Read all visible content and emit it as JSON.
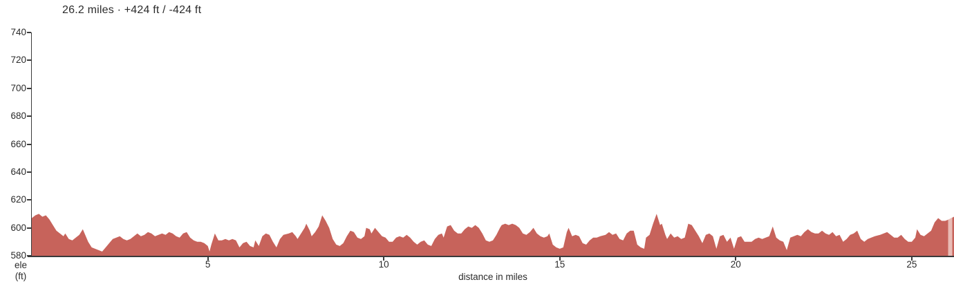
{
  "header": {
    "title": "26.2 miles · +424 ft / -424 ft"
  },
  "chart_data": {
    "type": "area",
    "title": "26.2 miles · +424 ft / -424 ft",
    "xlabel": "distance in miles",
    "ylabel": "ele (ft)",
    "ylabel_lines": [
      "ele",
      "(ft)"
    ],
    "xlim": [
      0,
      26.2
    ],
    "ylim": [
      580,
      740
    ],
    "x_ticks": [
      5,
      10,
      15,
      20,
      25
    ],
    "y_ticks": [
      580,
      600,
      620,
      640,
      660,
      680,
      700,
      720,
      740
    ],
    "grid": false,
    "legend": "none",
    "stats": {
      "distance_miles": 26.2,
      "ascent_ft": 424,
      "descent_ft": 424
    },
    "colors": {
      "area_fill": "#c7635b",
      "end_marker": "#e9bcb6",
      "axis": "#3a3a3a",
      "text": "#2b2b2b"
    },
    "series": [
      {
        "name": "elevation",
        "points": [
          [
            0,
            607
          ],
          [
            0.1,
            609
          ],
          [
            0.2,
            610
          ],
          [
            0.3,
            608
          ],
          [
            0.4,
            609
          ],
          [
            0.5,
            606
          ],
          [
            0.6,
            602
          ],
          [
            0.7,
            598
          ],
          [
            0.75,
            597
          ],
          [
            0.85,
            595
          ],
          [
            0.9,
            594
          ],
          [
            0.95,
            596
          ],
          [
            1.05,
            592
          ],
          [
            1.15,
            591
          ],
          [
            1.25,
            593
          ],
          [
            1.35,
            595
          ],
          [
            1.45,
            599
          ],
          [
            1.5,
            596
          ],
          [
            1.6,
            590
          ],
          [
            1.7,
            586
          ],
          [
            1.8,
            585
          ],
          [
            1.9,
            584
          ],
          [
            2.0,
            583
          ],
          [
            2.1,
            586
          ],
          [
            2.2,
            589
          ],
          [
            2.3,
            592
          ],
          [
            2.4,
            593
          ],
          [
            2.5,
            594
          ],
          [
            2.6,
            592
          ],
          [
            2.7,
            591
          ],
          [
            2.8,
            592
          ],
          [
            2.9,
            594
          ],
          [
            3.0,
            596
          ],
          [
            3.1,
            594
          ],
          [
            3.2,
            595
          ],
          [
            3.3,
            597
          ],
          [
            3.4,
            596
          ],
          [
            3.5,
            594
          ],
          [
            3.6,
            595
          ],
          [
            3.7,
            596
          ],
          [
            3.8,
            595
          ],
          [
            3.9,
            597
          ],
          [
            4.0,
            596
          ],
          [
            4.1,
            594
          ],
          [
            4.2,
            593
          ],
          [
            4.3,
            596
          ],
          [
            4.4,
            597
          ],
          [
            4.5,
            593
          ],
          [
            4.6,
            591
          ],
          [
            4.7,
            590
          ],
          [
            4.8,
            590
          ],
          [
            4.9,
            589
          ],
          [
            5.0,
            587
          ],
          [
            5.05,
            583
          ],
          [
            5.1,
            588
          ],
          [
            5.2,
            596
          ],
          [
            5.3,
            591
          ],
          [
            5.4,
            591
          ],
          [
            5.5,
            592
          ],
          [
            5.6,
            591
          ],
          [
            5.7,
            592
          ],
          [
            5.8,
            591
          ],
          [
            5.9,
            586
          ],
          [
            6.0,
            589
          ],
          [
            6.1,
            590
          ],
          [
            6.2,
            587
          ],
          [
            6.3,
            586
          ],
          [
            6.35,
            591
          ],
          [
            6.45,
            587
          ],
          [
            6.55,
            594
          ],
          [
            6.65,
            596
          ],
          [
            6.75,
            595
          ],
          [
            6.85,
            590
          ],
          [
            6.95,
            586
          ],
          [
            7.05,
            592
          ],
          [
            7.15,
            595
          ],
          [
            7.3,
            596
          ],
          [
            7.4,
            597
          ],
          [
            7.5,
            594
          ],
          [
            7.55,
            592
          ],
          [
            7.65,
            596
          ],
          [
            7.75,
            600
          ],
          [
            7.8,
            603
          ],
          [
            7.9,
            598
          ],
          [
            7.95,
            594
          ],
          [
            8.05,
            597
          ],
          [
            8.15,
            601
          ],
          [
            8.25,
            609
          ],
          [
            8.35,
            605
          ],
          [
            8.45,
            600
          ],
          [
            8.55,
            592
          ],
          [
            8.65,
            588
          ],
          [
            8.75,
            587
          ],
          [
            8.85,
            589
          ],
          [
            8.95,
            594
          ],
          [
            9.05,
            598
          ],
          [
            9.15,
            597
          ],
          [
            9.25,
            593
          ],
          [
            9.35,
            592
          ],
          [
            9.45,
            594
          ],
          [
            9.5,
            600
          ],
          [
            9.6,
            599
          ],
          [
            9.65,
            596
          ],
          [
            9.75,
            600
          ],
          [
            9.85,
            597
          ],
          [
            9.95,
            594
          ],
          [
            10.05,
            593
          ],
          [
            10.15,
            590
          ],
          [
            10.25,
            590
          ],
          [
            10.35,
            593
          ],
          [
            10.45,
            594
          ],
          [
            10.55,
            593
          ],
          [
            10.65,
            595
          ],
          [
            10.75,
            593
          ],
          [
            10.85,
            590
          ],
          [
            10.95,
            588
          ],
          [
            11.05,
            590
          ],
          [
            11.15,
            591
          ],
          [
            11.25,
            588
          ],
          [
            11.35,
            587
          ],
          [
            11.45,
            592
          ],
          [
            11.55,
            595
          ],
          [
            11.65,
            596
          ],
          [
            11.7,
            593
          ],
          [
            11.8,
            601
          ],
          [
            11.9,
            602
          ],
          [
            12.0,
            598
          ],
          [
            12.1,
            596
          ],
          [
            12.2,
            596
          ],
          [
            12.3,
            599
          ],
          [
            12.4,
            601
          ],
          [
            12.5,
            600
          ],
          [
            12.6,
            602
          ],
          [
            12.7,
            600
          ],
          [
            12.8,
            596
          ],
          [
            12.9,
            591
          ],
          [
            13.0,
            590
          ],
          [
            13.1,
            591
          ],
          [
            13.2,
            595
          ],
          [
            13.3,
            600
          ],
          [
            13.35,
            602
          ],
          [
            13.45,
            603
          ],
          [
            13.55,
            602
          ],
          [
            13.65,
            603
          ],
          [
            13.75,
            602
          ],
          [
            13.85,
            600
          ],
          [
            13.95,
            596
          ],
          [
            14.05,
            595
          ],
          [
            14.15,
            597
          ],
          [
            14.25,
            600
          ],
          [
            14.35,
            596
          ],
          [
            14.45,
            594
          ],
          [
            14.55,
            593
          ],
          [
            14.65,
            594
          ],
          [
            14.7,
            596
          ],
          [
            14.8,
            588
          ],
          [
            14.9,
            586
          ],
          [
            15.0,
            585
          ],
          [
            15.1,
            586
          ],
          [
            15.2,
            597
          ],
          [
            15.25,
            600
          ],
          [
            15.35,
            594
          ],
          [
            15.45,
            595
          ],
          [
            15.55,
            594
          ],
          [
            15.65,
            589
          ],
          [
            15.75,
            588
          ],
          [
            15.85,
            591
          ],
          [
            15.95,
            593
          ],
          [
            16.05,
            593
          ],
          [
            16.15,
            594
          ],
          [
            16.3,
            595
          ],
          [
            16.4,
            597
          ],
          [
            16.5,
            595
          ],
          [
            16.6,
            596
          ],
          [
            16.7,
            592
          ],
          [
            16.8,
            591
          ],
          [
            16.9,
            596
          ],
          [
            17.0,
            598
          ],
          [
            17.1,
            598
          ],
          [
            17.2,
            588
          ],
          [
            17.3,
            586
          ],
          [
            17.4,
            585
          ],
          [
            17.45,
            593
          ],
          [
            17.55,
            595
          ],
          [
            17.65,
            603
          ],
          [
            17.75,
            610
          ],
          [
            17.85,
            602
          ],
          [
            17.9,
            603
          ],
          [
            18.0,
            595
          ],
          [
            18.05,
            592
          ],
          [
            18.15,
            596
          ],
          [
            18.25,
            593
          ],
          [
            18.35,
            594
          ],
          [
            18.45,
            592
          ],
          [
            18.55,
            593
          ],
          [
            18.65,
            603
          ],
          [
            18.75,
            602
          ],
          [
            18.85,
            598
          ],
          [
            18.95,
            594
          ],
          [
            19.05,
            589
          ],
          [
            19.15,
            595
          ],
          [
            19.25,
            596
          ],
          [
            19.35,
            594
          ],
          [
            19.45,
            585
          ],
          [
            19.55,
            594
          ],
          [
            19.65,
            595
          ],
          [
            19.75,
            590
          ],
          [
            19.85,
            593
          ],
          [
            19.95,
            585
          ],
          [
            20.05,
            593
          ],
          [
            20.15,
            594
          ],
          [
            20.25,
            590
          ],
          [
            20.35,
            590
          ],
          [
            20.45,
            590
          ],
          [
            20.55,
            592
          ],
          [
            20.65,
            593
          ],
          [
            20.75,
            592
          ],
          [
            20.85,
            593
          ],
          [
            20.95,
            594
          ],
          [
            21.05,
            601
          ],
          [
            21.15,
            593
          ],
          [
            21.25,
            591
          ],
          [
            21.35,
            590
          ],
          [
            21.45,
            584
          ],
          [
            21.55,
            593
          ],
          [
            21.65,
            594
          ],
          [
            21.75,
            595
          ],
          [
            21.85,
            594
          ],
          [
            21.95,
            597
          ],
          [
            22.05,
            599
          ],
          [
            22.15,
            597
          ],
          [
            22.25,
            596
          ],
          [
            22.35,
            596
          ],
          [
            22.45,
            598
          ],
          [
            22.55,
            596
          ],
          [
            22.65,
            595
          ],
          [
            22.75,
            597
          ],
          [
            22.85,
            594
          ],
          [
            22.95,
            595
          ],
          [
            23.05,
            590
          ],
          [
            23.15,
            592
          ],
          [
            23.25,
            595
          ],
          [
            23.35,
            596
          ],
          [
            23.45,
            598
          ],
          [
            23.55,
            592
          ],
          [
            23.65,
            590
          ],
          [
            23.75,
            592
          ],
          [
            23.85,
            593
          ],
          [
            23.95,
            594
          ],
          [
            24.1,
            595
          ],
          [
            24.2,
            596
          ],
          [
            24.3,
            597
          ],
          [
            24.4,
            595
          ],
          [
            24.5,
            593
          ],
          [
            24.6,
            593
          ],
          [
            24.7,
            595
          ],
          [
            24.8,
            592
          ],
          [
            24.9,
            590
          ],
          [
            25.0,
            590
          ],
          [
            25.1,
            593
          ],
          [
            25.15,
            599
          ],
          [
            25.25,
            595
          ],
          [
            25.35,
            594
          ],
          [
            25.45,
            596
          ],
          [
            25.55,
            598
          ],
          [
            25.65,
            604
          ],
          [
            25.75,
            607
          ],
          [
            25.85,
            605
          ],
          [
            25.95,
            605
          ],
          [
            26.05,
            606
          ],
          [
            26.2,
            608
          ]
        ]
      }
    ]
  }
}
